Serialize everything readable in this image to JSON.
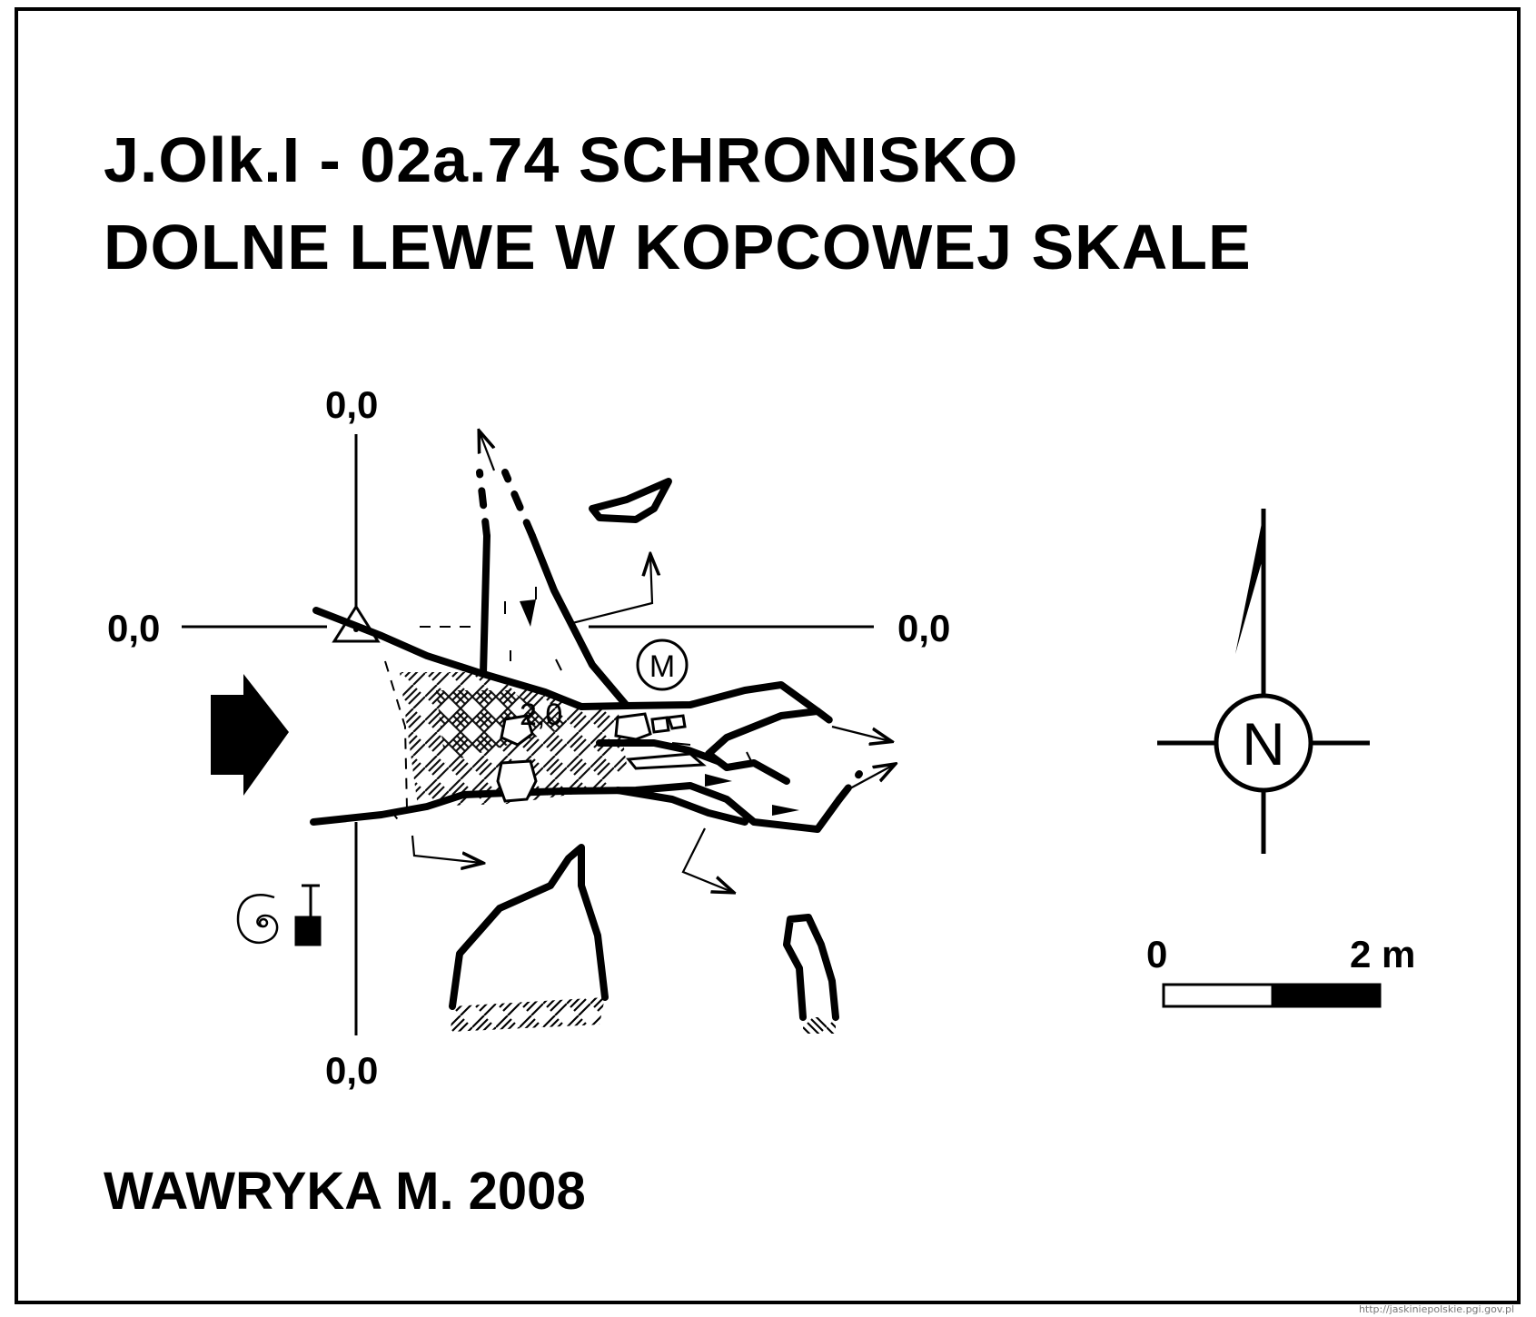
{
  "title": {
    "line1": "J.Olk.I - 02a.74  SCHRONISKO",
    "line2": "DOLNE LEWE W KOPCOWEJ SKALE"
  },
  "datum_labels": {
    "top": "0,0",
    "left": "0,0",
    "right": "0,0",
    "bottom": "0,0"
  },
  "floor_depth": "2,0",
  "marker_m": "M",
  "north": "N",
  "scale": {
    "start": "0",
    "end": "2 m"
  },
  "author": "WAWRYKA M. 2008",
  "watermark": "http://jaskiniepolskie.pgi.gov.pl",
  "icons": [
    "entrance-arrow-icon",
    "survey-point-triangle-icon",
    "compass-north-icon",
    "scale-bar-icon",
    "spiral-icon",
    "hammer-icon",
    "arrow-icon"
  ]
}
